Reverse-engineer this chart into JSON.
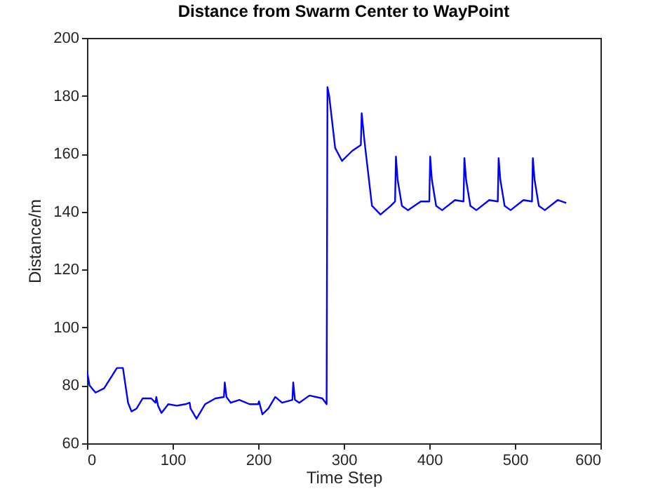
{
  "chart_data": {
    "type": "line",
    "title": "Distance from Swarm Center to WayPoint",
    "xlabel": "Time Step",
    "ylabel": "Distance/m",
    "xlim": [
      0,
      600
    ],
    "xticks": [
      0,
      100,
      200,
      300,
      400,
      500,
      600
    ],
    "ylim": [
      60,
      200
    ],
    "yticks": [
      60,
      80,
      100,
      120,
      140,
      160,
      180,
      200
    ],
    "grid": false,
    "legend": false,
    "marker": "none",
    "line_style": "solid",
    "series": [
      {
        "color": "#0000ff",
        "x": [
          0,
          3,
          10,
          20,
          35,
          42,
          48,
          52,
          58,
          65,
          75,
          80,
          81,
          83,
          87,
          95,
          105,
          115,
          120,
          121,
          128,
          138,
          150,
          160,
          161,
          163,
          168,
          178,
          190,
          200,
          201,
          205,
          212,
          220,
          228,
          240,
          241,
          243,
          248,
          260,
          275,
          280,
          281,
          283,
          290,
          298,
          310,
          320,
          321,
          324,
          333,
          343,
          355,
          360,
          361,
          363,
          368,
          375,
          390,
          400,
          401,
          403,
          408,
          415,
          430,
          440,
          441,
          443,
          448,
          455,
          470,
          480,
          481,
          483,
          488,
          495,
          510,
          520,
          521,
          523,
          528,
          535,
          550,
          560
        ],
        "values": [
          85,
          80,
          77.5,
          79,
          86,
          86,
          74,
          71,
          72,
          75.5,
          75.5,
          74,
          76,
          73,
          70.5,
          73.5,
          73,
          73.5,
          74,
          72,
          68.5,
          73.5,
          75.5,
          76,
          81,
          76,
          74,
          75,
          73.5,
          73.5,
          74.5,
          70,
          72,
          76,
          74,
          75,
          81,
          75,
          74,
          76.5,
          75.5,
          73.5,
          183,
          180,
          162,
          157.5,
          161,
          163,
          174,
          165,
          142,
          139,
          142,
          143.5,
          159,
          151,
          142,
          140.5,
          143.5,
          143.5,
          159,
          151,
          142,
          140.5,
          144,
          143.5,
          158.5,
          151,
          142,
          140.5,
          144,
          143.5,
          158.5,
          151,
          142,
          140.5,
          144,
          143.5,
          158.5,
          151,
          142,
          140.5,
          144,
          143
        ]
      }
    ]
  }
}
